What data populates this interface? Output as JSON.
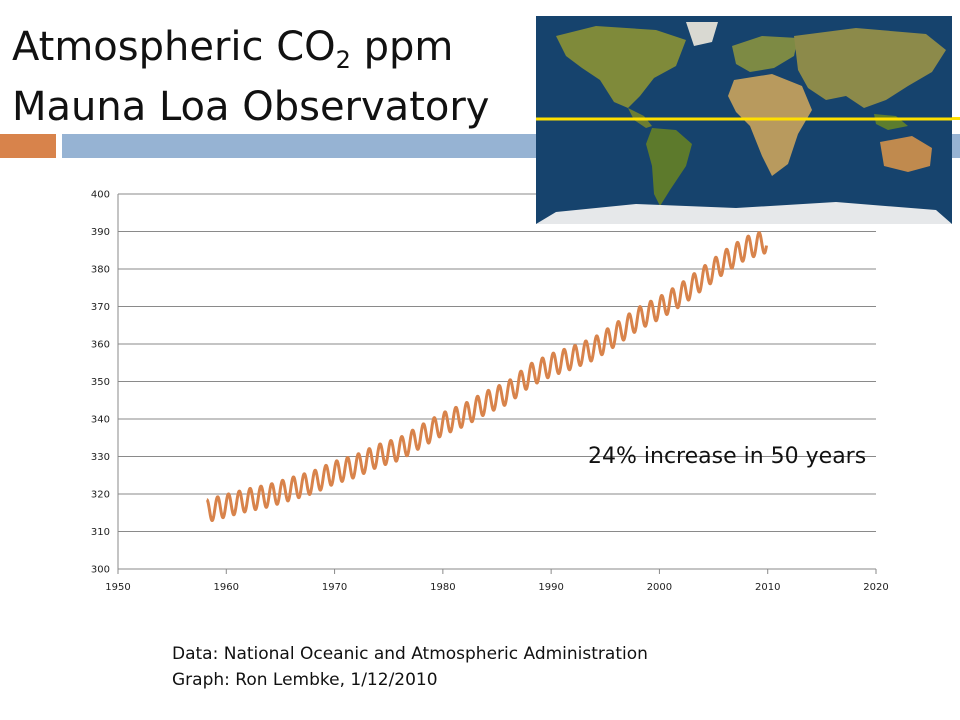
{
  "slide": {
    "title_prefix": "Atmospheric CO",
    "title_subscript": "2",
    "title_suffix": " ppm",
    "title_line2": "Mauna Loa Observatory",
    "annotation": "24% increase in 50 years",
    "credit_data": "Data: National Oceanic and Atmospheric Administration",
    "credit_graph": "Graph: Ron Lembke, 1/12/2010",
    "accent_colors": {
      "orange": "#d8834b",
      "blue": "#96b3d3"
    },
    "map": {
      "latitude_line_color": "#ffe000",
      "ocean_color": "#16436d",
      "land_color": "#7f8a3a"
    }
  },
  "chart_data": {
    "type": "line",
    "title": "",
    "xlabel": "",
    "ylabel": "",
    "xlim": [
      1950,
      2020
    ],
    "ylim": [
      300,
      400
    ],
    "x_ticks": [
      "1950",
      "1960",
      "1970",
      "1980",
      "1990",
      "2000",
      "2010",
      "2020"
    ],
    "y_ticks": [
      "300",
      "310",
      "320",
      "330",
      "340",
      "350",
      "360",
      "370",
      "380",
      "390",
      "400"
    ],
    "grid": "horizontal",
    "line_color": "#d8834b",
    "series": [
      {
        "x": [
          1958.2,
          1960,
          1962,
          1964,
          1966,
          1968,
          1970,
          1972,
          1974,
          1976,
          1978,
          1980,
          1982,
          1984,
          1986,
          1988,
          1990,
          1992,
          1994,
          1996,
          1998,
          2000,
          2002,
          2004,
          2006,
          2008,
          2009.9
        ],
        "values": [
          315.5,
          316.9,
          318.4,
          319.6,
          321.4,
          323.1,
          325.7,
          327.5,
          330.2,
          332.0,
          335.4,
          338.7,
          341.1,
          344.4,
          347.0,
          351.6,
          354.4,
          356.4,
          358.8,
          362.6,
          366.7,
          369.6,
          373.2,
          377.5,
          381.9,
          385.6,
          387.4
        ],
        "seasonal_amplitude": 3.3
      }
    ]
  }
}
